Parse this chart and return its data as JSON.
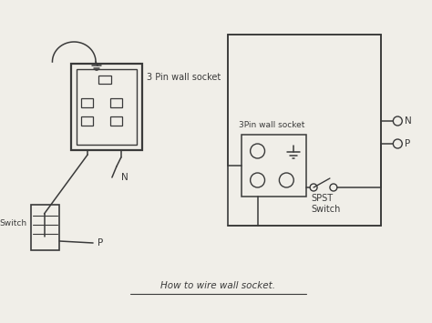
{
  "bg_color": "#f0eee8",
  "line_color": "#3a3a3a",
  "title": "How to wire wall socket.",
  "label_3pin_left": "3 Pin wall socket",
  "label_switch_left": "Switch",
  "label_n_left": "N",
  "label_p_left": "P",
  "label_3pin_right": "3Pin wall socket",
  "label_spst": "SPST\nSwitch",
  "label_n_right": "N",
  "label_p_right": "P"
}
